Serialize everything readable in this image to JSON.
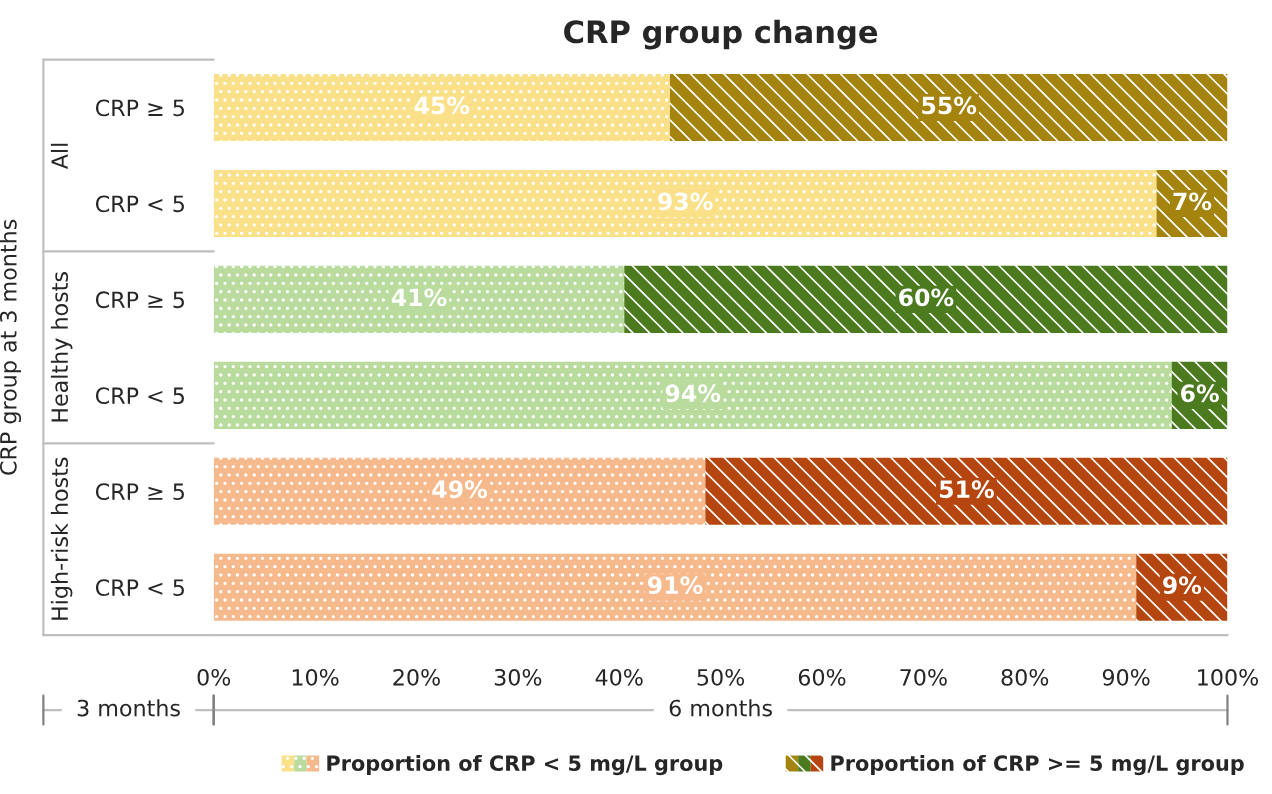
{
  "chart_data": {
    "type": "bar",
    "orientation": "horizontal",
    "stacked": true,
    "title": "CRP group change",
    "ylabel": "CRP group at 3 months",
    "categories": [
      "CRP ≥ 5",
      "CRP < 5",
      "CRP ≥ 5",
      "CRP < 5",
      "CRP ≥ 5",
      "CRP < 5"
    ],
    "series": [
      {
        "name": "Proportion of CRP < 5 mg/L group",
        "values": [
          45,
          93,
          40.5,
          94.5,
          48.5,
          91
        ],
        "value_labels": [
          "45%",
          "93%",
          "41%",
          "94%",
          "49%",
          "91%"
        ],
        "colors": [
          "#fbe08a",
          "#fbe08a",
          "#b9dc9e",
          "#b9dc9e",
          "#f6b98c",
          "#f6b98c"
        ]
      },
      {
        "name": "Proportion of CRP >= 5 mg/L group",
        "values": [
          55,
          7,
          59.5,
          5.5,
          51.5,
          9
        ],
        "value_labels": [
          "55%",
          "7%",
          "60%",
          "6%",
          "51%",
          "9%"
        ],
        "colors": [
          "#a4830e",
          "#a4830e",
          "#4b7a1f",
          "#4b7a1f",
          "#b5460f",
          "#b5460f"
        ]
      }
    ],
    "xlim": [
      0,
      100
    ],
    "xticks": [
      {
        "value": 0,
        "label": "0%"
      },
      {
        "value": 10,
        "label": "10%"
      },
      {
        "value": 20,
        "label": "20%"
      },
      {
        "value": 30,
        "label": "30%"
      },
      {
        "value": 40,
        "label": "40%"
      },
      {
        "value": 50,
        "label": "50%"
      },
      {
        "value": 60,
        "label": "60%"
      },
      {
        "value": 70,
        "label": "70%"
      },
      {
        "value": 80,
        "label": "80%"
      },
      {
        "value": 90,
        "label": "90%"
      },
      {
        "value": 100,
        "label": "100%"
      }
    ],
    "annotations": [
      "All",
      "Healthy hosts",
      "High-risk hosts",
      "3 months",
      "6 months"
    ],
    "legend": "bottom"
  }
}
